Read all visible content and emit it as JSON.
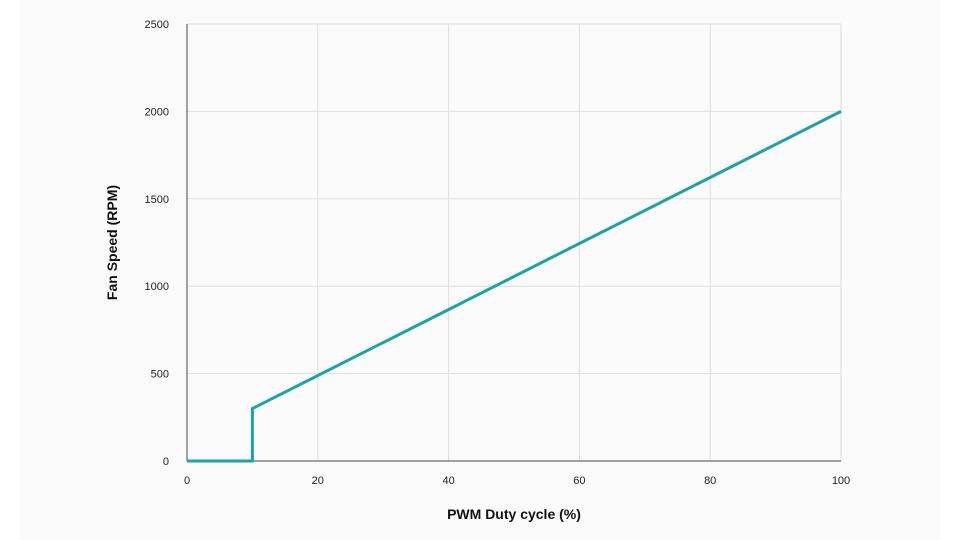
{
  "chart_data": {
    "type": "line",
    "title": "",
    "xlabel": "PWM Duty cycle (%)",
    "ylabel": "Fan Speed (RPM)",
    "xlim": [
      0,
      100
    ],
    "ylim": [
      0,
      2500
    ],
    "x_ticks": [
      0,
      20,
      40,
      60,
      80,
      100
    ],
    "y_ticks": [
      0,
      500,
      1000,
      1500,
      2000,
      2500
    ],
    "grid": true,
    "line_color": "#1ba3a8",
    "series": [
      {
        "points": [
          [
            0,
            0
          ],
          [
            10,
            0
          ],
          [
            10,
            300
          ],
          [
            100,
            2000
          ]
        ]
      }
    ]
  }
}
